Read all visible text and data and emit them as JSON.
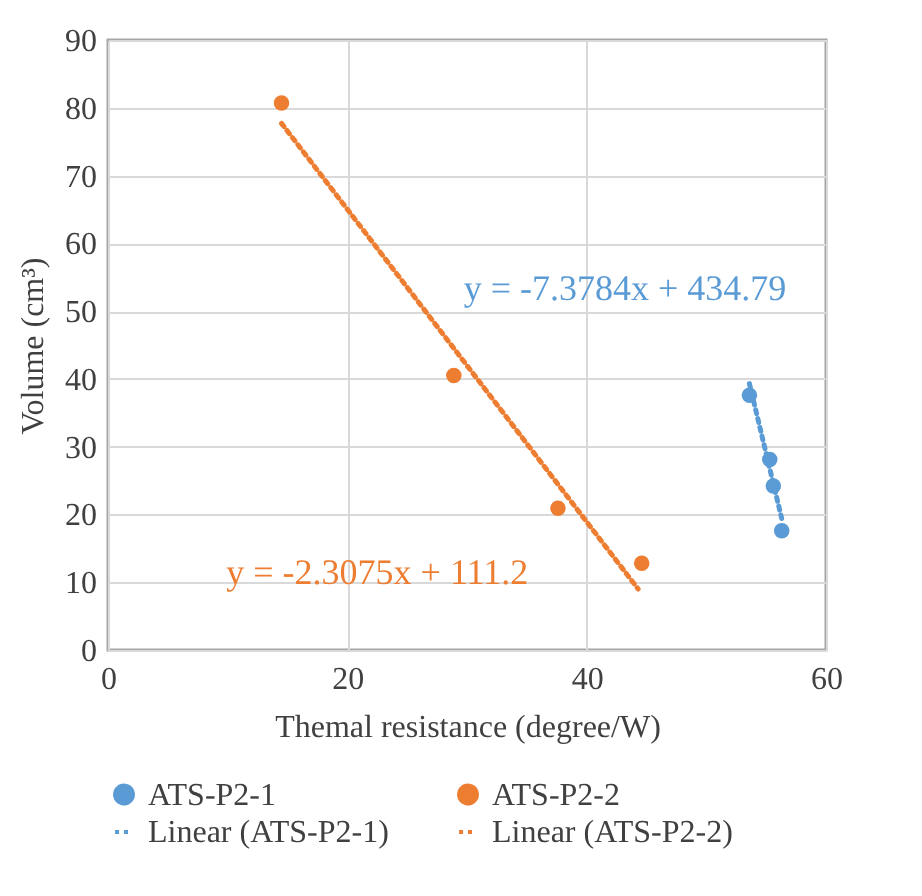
{
  "chart_data": {
    "type": "scatter",
    "xlabel": "Themal resistance (degree/W)",
    "ylabel": "Volume  (cm³)",
    "xlim": [
      0,
      60
    ],
    "xticks": [
      0,
      20,
      40,
      60
    ],
    "ylim": [
      0,
      90
    ],
    "yticks": [
      0,
      10,
      20,
      30,
      40,
      50,
      60,
      70,
      80,
      90
    ],
    "grid": true,
    "legend": "bottom",
    "series": [
      {
        "name": "ATS-P2-1",
        "marker": "circle",
        "color": "#5b9bd5",
        "x": [
          53.6,
          55.3,
          55.6,
          56.3
        ],
        "values": [
          37.6,
          28.1,
          24.2,
          17.6
        ]
      },
      {
        "name": "ATS-P2-2",
        "marker": "circle",
        "color": "#ed7d31",
        "x": [
          14.5,
          28.9,
          37.6,
          44.6
        ],
        "values": [
          80.7,
          40.5,
          20.9,
          12.8
        ]
      },
      {
        "name": "Linear (ATS-P2-1)",
        "type": "line",
        "line_style": "dotted",
        "color": "#5b9bd5",
        "x": [
          53.6,
          56.3
        ],
        "values": [
          39.3,
          19.4
        ]
      },
      {
        "name": "Linear (ATS-P2-2)",
        "type": "line",
        "line_style": "dotted",
        "color": "#ed7d31",
        "x": [
          14.5,
          44.3
        ],
        "values": [
          77.7,
          9.0
        ]
      }
    ],
    "annotations": [
      "y = -7.3784x + 434.79",
      "y = -2.3075x + 111.2"
    ]
  }
}
